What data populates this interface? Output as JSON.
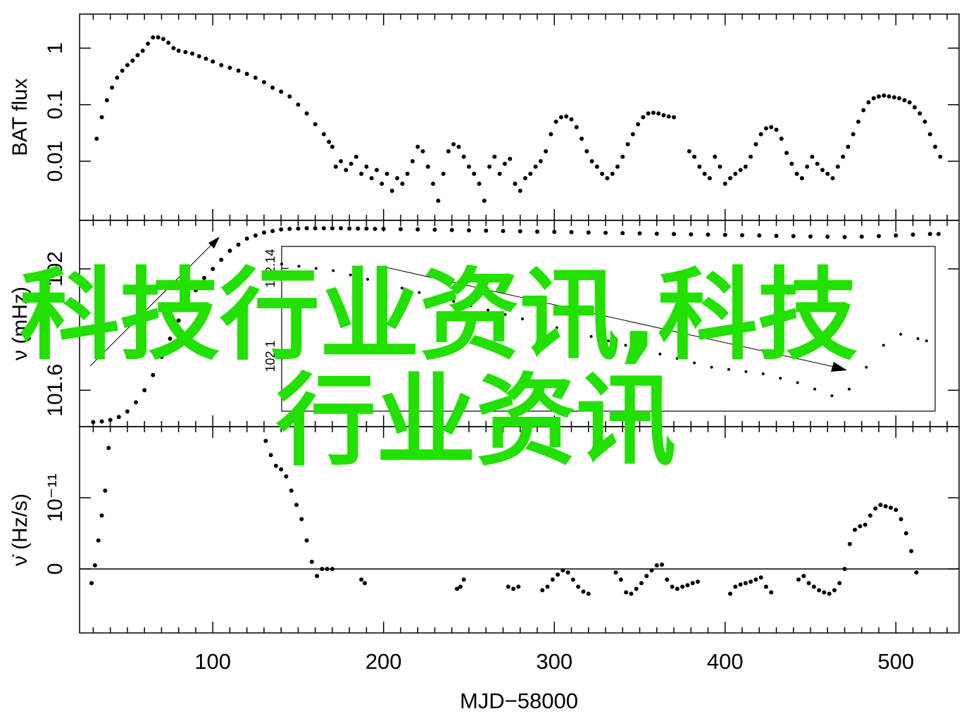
{
  "overlay": {
    "line1": "科技行业资讯,科技",
    "line2": "行业资讯"
  },
  "chart_data": {
    "type": "scatter",
    "xlabel": "MJD−58000",
    "xlim": [
      22,
      537
    ],
    "x_ticks": [
      "100",
      "200",
      "300",
      "400",
      "500"
    ],
    "x_tick_values": [
      100,
      200,
      300,
      400,
      500
    ],
    "colors": {
      "points": "#000000",
      "overlay_text": "#22e000"
    },
    "panels": [
      {
        "name": "flux",
        "ylabel": "BAT flux",
        "yscale": "log",
        "ylim": [
          0.0009,
          4
        ],
        "y_ticks": [
          "0.01",
          "0.1",
          "1"
        ],
        "y_tick_values": [
          0.01,
          0.1,
          1
        ],
        "series": [
          {
            "x": [
              32,
              35,
              38,
              41,
              44,
              47,
              50,
              53,
              56,
              59,
              62,
              65,
              68,
              71,
              74,
              77,
              80,
              84,
              88,
              92,
              96,
              100,
              105,
              110,
              115,
              120,
              125,
              130,
              135,
              140,
              145,
              150,
              155,
              160,
              165,
              168,
              170
            ],
            "y": [
              0.025,
              0.06,
              0.12,
              0.2,
              0.3,
              0.4,
              0.5,
              0.6,
              0.75,
              0.9,
              1.2,
              1.55,
              1.55,
              1.45,
              1.25,
              1.0,
              0.9,
              0.85,
              0.8,
              0.72,
              0.65,
              0.58,
              0.5,
              0.45,
              0.4,
              0.35,
              0.3,
              0.25,
              0.2,
              0.17,
              0.14,
              0.1,
              0.07,
              0.045,
              0.03,
              0.022,
              0.018
            ]
          },
          {
            "x": [
              172,
              175,
              178,
              181,
              184,
              187,
              190,
              193,
              196,
              199,
              202,
              205,
              208,
              211,
              214,
              217,
              220,
              223,
              226,
              229,
              232,
              235,
              238,
              241,
              244,
              247,
              250,
              253,
              256,
              259,
              262,
              265,
              268,
              271,
              274,
              277,
              280,
              283,
              286,
              289,
              292,
              295,
              298,
              301,
              304,
              307,
              310,
              313,
              316,
              319,
              322,
              325,
              328,
              331,
              334,
              337,
              340,
              343,
              346,
              349,
              352,
              355,
              358,
              361,
              364,
              367,
              370
            ],
            "y": [
              0.008,
              0.01,
              0.007,
              0.009,
              0.012,
              0.006,
              0.008,
              0.005,
              0.007,
              0.004,
              0.006,
              0.003,
              0.005,
              0.004,
              0.006,
              0.01,
              0.018,
              0.015,
              0.008,
              0.004,
              0.002,
              0.006,
              0.015,
              0.02,
              0.018,
              0.012,
              0.008,
              0.006,
              0.004,
              0.002,
              0.008,
              0.012,
              0.006,
              0.009,
              0.011,
              0.004,
              0.003,
              0.005,
              0.006,
              0.008,
              0.01,
              0.015,
              0.03,
              0.05,
              0.06,
              0.062,
              0.055,
              0.04,
              0.025,
              0.015,
              0.01,
              0.008,
              0.006,
              0.005,
              0.006,
              0.008,
              0.012,
              0.02,
              0.03,
              0.045,
              0.06,
              0.07,
              0.072,
              0.07,
              0.065,
              0.062,
              0.06
            ]
          },
          {
            "x": [
              379,
              382,
              385,
              388,
              391,
              394,
              397,
              400,
              403,
              406,
              409,
              412,
              415,
              418,
              421,
              424,
              427,
              430,
              433,
              436,
              439,
              442,
              445,
              448,
              451,
              454,
              457,
              460,
              463,
              466,
              469,
              472,
              475,
              478,
              481,
              484,
              487,
              490,
              493,
              496,
              499,
              502,
              505,
              508,
              511,
              514,
              517,
              520,
              523,
              526
            ],
            "y": [
              0.015,
              0.012,
              0.008,
              0.006,
              0.005,
              0.012,
              0.008,
              0.004,
              0.005,
              0.006,
              0.007,
              0.008,
              0.012,
              0.02,
              0.03,
              0.038,
              0.04,
              0.036,
              0.025,
              0.014,
              0.009,
              0.006,
              0.005,
              0.008,
              0.012,
              0.009,
              0.007,
              0.006,
              0.005,
              0.008,
              0.012,
              0.018,
              0.03,
              0.05,
              0.08,
              0.11,
              0.13,
              0.14,
              0.145,
              0.14,
              0.135,
              0.13,
              0.12,
              0.11,
              0.09,
              0.07,
              0.05,
              0.03,
              0.018,
              0.012
            ]
          }
        ]
      },
      {
        "name": "frequency",
        "ylabel": "ν (mHz)",
        "ylim": [
          101.48,
          102.16
        ],
        "y_ticks": [
          "101.6",
          "102"
        ],
        "y_tick_values": [
          101.6,
          102.0
        ],
        "series": [
          {
            "x": [
              30,
              35,
              40,
              45,
              50,
              55,
              60,
              65,
              70,
              75,
              80,
              85,
              90,
              95,
              100,
              105,
              110,
              115,
              120,
              125,
              130,
              135,
              140,
              145,
              150,
              155,
              160,
              165,
              170,
              175,
              180,
              185,
              190,
              195,
              200,
              210,
              220,
              230,
              240,
              250,
              260,
              270,
              280,
              290,
              300,
              310,
              320,
              330,
              340,
              350,
              360,
              370,
              380,
              390,
              400,
              410,
              420,
              430,
              440,
              450,
              460,
              470,
              480,
              490,
              500,
              510,
              520,
              525
            ],
            "y": [
              101.495,
              101.497,
              101.502,
              101.512,
              101.53,
              101.56,
              101.6,
              101.65,
              101.71,
              101.77,
              101.83,
              101.88,
              101.93,
              101.97,
              102.0,
              102.03,
              102.06,
              102.08,
              102.1,
              102.11,
              102.12,
              102.125,
              102.13,
              102.132,
              102.133,
              102.134,
              102.134,
              102.134,
              102.134,
              102.134,
              102.133,
              102.133,
              102.133,
              102.132,
              102.132,
              102.131,
              102.13,
              102.129,
              102.128,
              102.127,
              102.126,
              102.125,
              102.124,
              102.123,
              102.122,
              102.121,
              102.12,
              102.119,
              102.118,
              102.117,
              102.116,
              102.115,
              102.114,
              102.113,
              102.112,
              102.111,
              102.11,
              102.109,
              102.108,
              102.107,
              102.106,
              102.105,
              102.106,
              102.108,
              102.11,
              102.113,
              102.115,
              102.115
            ]
          }
        ],
        "inset": {
          "ylim": [
            102.075,
            102.15
          ],
          "y_ticks": [
            "102.1",
            "102.14"
          ],
          "y_tick_values": [
            102.1,
            102.14
          ],
          "x": [
            150,
            160,
            170,
            180,
            190,
            200,
            210,
            220,
            230,
            240,
            250,
            260,
            270,
            280,
            290,
            300,
            310,
            320,
            330,
            340,
            350,
            360,
            370,
            380,
            390,
            400,
            410,
            420,
            430,
            440,
            450,
            460,
            470,
            480,
            490,
            500,
            510,
            520,
            525
          ],
          "y": [
            102.142,
            102.141,
            102.14,
            102.139,
            102.137,
            102.135,
            102.133,
            102.131,
            102.129,
            102.127,
            102.125,
            102.123,
            102.121,
            102.119,
            102.117,
            102.115,
            102.113,
            102.111,
            102.109,
            102.107,
            102.105,
            102.103,
            102.101,
            102.099,
            102.097,
            102.095,
            102.094,
            102.093,
            102.092,
            102.09,
            102.088,
            102.085,
            102.082,
            102.085,
            102.095,
            102.105,
            102.11,
            102.108,
            102.107
          ]
        }
      },
      {
        "name": "fdot",
        "ylabel": "ν̇ (Hz/s)",
        "ylim": [
          -9e-12,
          2e-11
        ],
        "y_ticks": [
          "0",
          "10⁻¹¹"
        ],
        "y_tick_values": [
          0,
          1e-11
        ],
        "series": [
          {
            "x": [
              29,
              31,
              33,
              35,
              37,
              39,
              41,
              128,
              131,
              134,
              137,
              140,
              143,
              146,
              149,
              152,
              155,
              158,
              161,
              164,
              167,
              170,
              187,
              189,
              243,
              245,
              247,
              273,
              276,
              279,
              293,
              296,
              299,
              302,
              305,
              308,
              311,
              314,
              317,
              320,
              336,
              339,
              342,
              345,
              348,
              351,
              354,
              357,
              360,
              363,
              366,
              369,
              372,
              375,
              378,
              381,
              384,
              403,
              406,
              409,
              412,
              415,
              418,
              421,
              424,
              427,
              443,
              446,
              449,
              452,
              455,
              458,
              461,
              464,
              467,
              470,
              473,
              476,
              479,
              482,
              485,
              488,
              491,
              494,
              497,
              500,
              503,
              506,
              509,
              512
            ],
            "y": [
              -2e-12,
              5e-13,
              4e-12,
              7.5e-12,
              1.1e-11,
              1.7e-11,
              2e-11,
              2e-11,
              1.8e-11,
              1.6e-11,
              1.45e-11,
              1.4e-11,
              1.3e-11,
              1.1e-11,
              9e-12,
              7e-12,
              4e-12,
              1e-12,
              -1e-12,
              0,
              0,
              0,
              -1.5e-12,
              -2e-12,
              -2.8e-12,
              -2.5e-12,
              -1.5e-12,
              -2.5e-12,
              -2.8e-12,
              -2.5e-12,
              -3e-12,
              -2.5e-12,
              -1.5e-12,
              -8e-13,
              -2e-13,
              -5e-13,
              -1.5e-12,
              -2.5e-12,
              -3.2e-12,
              -3.5e-12,
              -5e-13,
              -1.5e-12,
              -3.3e-12,
              -3.5e-12,
              -2.8e-12,
              -2e-12,
              -1e-12,
              -2e-13,
              5e-13,
              6e-13,
              -1.5e-12,
              -2.5e-12,
              -2.8e-12,
              -2.5e-12,
              -2.3e-12,
              -2e-12,
              -1.8e-12,
              -3.5e-12,
              -2.5e-12,
              -2.2e-12,
              -2e-12,
              -1.8e-12,
              -1.5e-12,
              -1.2e-12,
              -2.5e-12,
              -3.3e-12,
              -1.5e-12,
              -1e-12,
              -2e-12,
              -2.5e-12,
              -3e-12,
              -3.3e-12,
              -3.5e-12,
              -3e-12,
              -2e-12,
              0,
              3.5e-12,
              5.5e-12,
              6e-12,
              6.2e-12,
              7.5e-12,
              8.5e-12,
              9e-12,
              8.8e-12,
              8.6e-12,
              8.3e-12,
              7e-12,
              5e-12,
              2.5e-12,
              -5e-13
            ]
          }
        ]
      }
    ]
  }
}
